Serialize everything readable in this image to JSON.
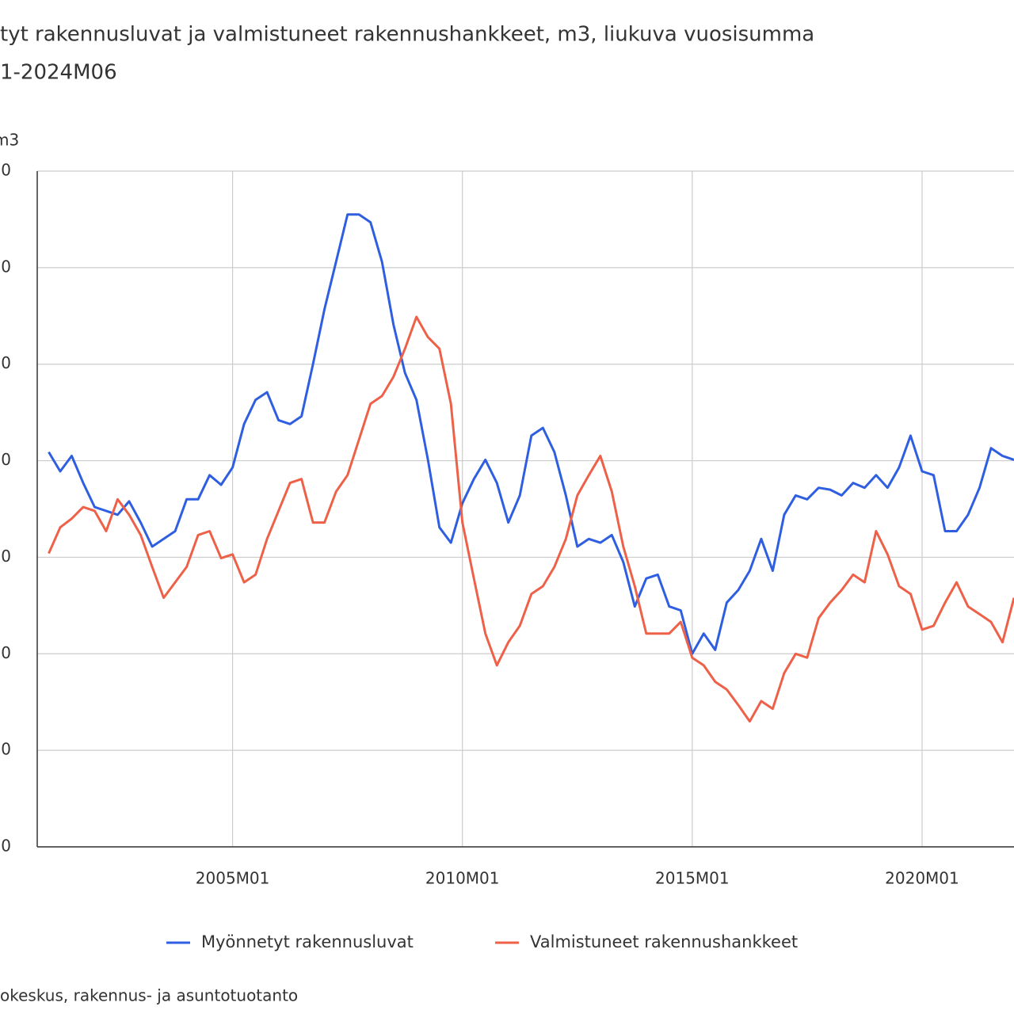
{
  "chart_data": {
    "type": "line",
    "title": [
      "tyt rakennusluvat ja valmistuneet rakennushankkeet, m3, liukuva vuosisumma",
      "1-2024M06"
    ],
    "y_label": "m3",
    "source": "okeskus, rakennus- ja asuntotuotanto",
    "x": [
      "2001M01",
      "2001M04",
      "2001M07",
      "2001M10",
      "2002M01",
      "2002M04",
      "2002M07",
      "2002M10",
      "2003M01",
      "2003M04",
      "2003M07",
      "2003M10",
      "2004M01",
      "2004M04",
      "2004M07",
      "2004M10",
      "2005M01",
      "2005M04",
      "2005M07",
      "2005M10",
      "2006M01",
      "2006M04",
      "2006M07",
      "2006M10",
      "2007M01",
      "2007M04",
      "2007M07",
      "2007M10",
      "2008M01",
      "2008M04",
      "2008M07",
      "2008M10",
      "2009M01",
      "2009M04",
      "2009M07",
      "2009M10",
      "2010M01",
      "2010M04",
      "2010M07",
      "2010M10",
      "2011M01",
      "2011M04",
      "2011M07",
      "2011M10",
      "2012M01",
      "2012M04",
      "2012M07",
      "2012M10",
      "2013M01",
      "2013M04",
      "2013M07",
      "2013M10",
      "2014M01",
      "2014M04",
      "2014M07",
      "2014M10",
      "2015M01",
      "2015M04",
      "2015M07",
      "2015M10",
      "2016M01",
      "2016M04",
      "2016M07",
      "2016M10",
      "2017M01",
      "2017M04",
      "2017M07",
      "2017M10",
      "2018M01",
      "2018M04",
      "2018M07",
      "2018M10",
      "2019M01",
      "2019M04",
      "2019M07",
      "2019M10",
      "2020M01",
      "2020M04",
      "2020M07",
      "2020M10",
      "2021M01",
      "2021M04",
      "2021M07",
      "2021M10",
      "2022M01"
    ],
    "series": [
      {
        "name": "Myönnetyt rakennusluvat",
        "color": "#2f5fe0",
        "values": [
          40900000,
          38900000,
          40500000,
          37700000,
          35200000,
          34800000,
          34400000,
          35800000,
          33600000,
          31100000,
          31900000,
          32700000,
          36000000,
          36000000,
          38500000,
          37500000,
          39300000,
          43800000,
          46300000,
          47100000,
          44200000,
          43800000,
          44600000,
          50000000,
          55700000,
          60600000,
          65500000,
          65500000,
          64700000,
          60600000,
          54100000,
          49100000,
          46300000,
          40100000,
          33100000,
          31500000,
          35600000,
          38100000,
          40100000,
          37700000,
          33600000,
          36400000,
          42600000,
          43400000,
          40900000,
          36400000,
          31100000,
          31900000,
          31500000,
          32300000,
          29500000,
          24900000,
          27800000,
          28200000,
          24900000,
          24500000,
          20000000,
          22100000,
          20400000,
          25300000,
          26600000,
          28600000,
          31900000,
          28600000,
          34400000,
          36400000,
          36000000,
          37200000,
          37000000,
          36400000,
          37700000,
          37200000,
          38500000,
          37200000,
          39300000,
          42600000,
          38900000,
          38500000,
          32700000,
          32700000,
          34400000,
          37200000,
          41300000,
          40500000,
          40100000
        ]
      },
      {
        "name": "Valmistuneet rakennushankkeet",
        "color": "#ee6149",
        "values": [
          30400000,
          33100000,
          34000000,
          35200000,
          34800000,
          32700000,
          36000000,
          34400000,
          32300000,
          29000000,
          25800000,
          27400000,
          29000000,
          32300000,
          32700000,
          29900000,
          30300000,
          27400000,
          28200000,
          31900000,
          34800000,
          37700000,
          38100000,
          33600000,
          33600000,
          36800000,
          38500000,
          42200000,
          45900000,
          46700000,
          48700000,
          51600000,
          54900000,
          52800000,
          51600000,
          45900000,
          33600000,
          27800000,
          22100000,
          18800000,
          21200000,
          22900000,
          26200000,
          27000000,
          29000000,
          31900000,
          36400000,
          38500000,
          40500000,
          36800000,
          31100000,
          27000000,
          22100000,
          22100000,
          22100000,
          23300000,
          19600000,
          18800000,
          17100000,
          16300000,
          14700000,
          13000000,
          15100000,
          14300000,
          18000000,
          20000000,
          19600000,
          23700000,
          25300000,
          26600000,
          28200000,
          27400000,
          32700000,
          30300000,
          27000000,
          26200000,
          22500000,
          22900000,
          25300000,
          27400000,
          24900000,
          24100000,
          23300000,
          21200000,
          25800000
        ]
      }
    ],
    "xlim": [
      "2000M10",
      "2022M01"
    ],
    "xticks": [
      "2005M01",
      "2010M01",
      "2015M01",
      "2020M01"
    ],
    "ylim": [
      0,
      70000000
    ],
    "yticks": [
      {
        "value": 0,
        "label": "0"
      },
      {
        "value": 10000000,
        "label": "0"
      },
      {
        "value": 20000000,
        "label": "0"
      },
      {
        "value": 30000000,
        "label": "0"
      },
      {
        "value": 40000000,
        "label": "0"
      },
      {
        "value": 50000000,
        "label": "0"
      },
      {
        "value": 60000000,
        "label": "0"
      },
      {
        "value": 70000000,
        "label": "0"
      }
    ],
    "grid": true
  }
}
